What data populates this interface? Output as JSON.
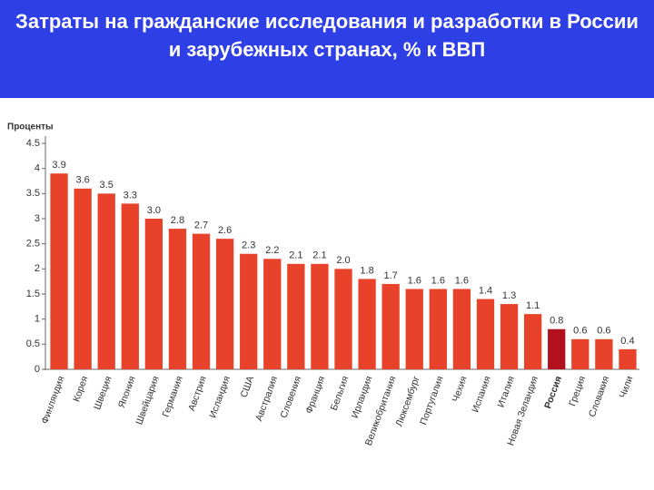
{
  "chart_data": {
    "type": "bar",
    "title": "Затраты на гражданские исследования и разработки в России и зарубежных странах, % к ВВП",
    "y_label": "Проценты",
    "categories": [
      "Финляндия",
      "Корея",
      "Швеция",
      "Япония",
      "Швейцария",
      "Германия",
      "Австрия",
      "Исландия",
      "США",
      "Австралия",
      "Словения",
      "Франция",
      "Бельгия",
      "Ирландия",
      "Великобритания",
      "Люксембург",
      "Португалия",
      "Чехия",
      "Испания",
      "Италия",
      "Новая Зеландия",
      "Россия",
      "Греция",
      "Словакия",
      "Чили"
    ],
    "values": [
      3.9,
      3.6,
      3.5,
      3.3,
      3.0,
      2.8,
      2.7,
      2.6,
      2.3,
      2.2,
      2.1,
      2.1,
      2.0,
      1.8,
      1.7,
      1.6,
      1.6,
      1.6,
      1.4,
      1.3,
      1.1,
      0.8,
      0.6,
      0.6,
      0.4
    ],
    "value_labels": [
      "3.9",
      "3.6",
      "3.5",
      "3.3",
      "3.0",
      "2.8",
      "2.7",
      "2.6",
      "2.3",
      "2.2",
      "2.1",
      "2.1",
      "2.0",
      "1.8",
      "1.7",
      "1.6",
      "1.6",
      "1.6",
      "1.4",
      "1.3",
      "1.1",
      "0.8",
      "0.6",
      "0.6",
      "0.4"
    ],
    "color": "#e8432a",
    "colors": [
      "#e8432a",
      "#e8432a",
      "#e8432a",
      "#e8432a",
      "#e8432a",
      "#e8432a",
      "#e8432a",
      "#e8432a",
      "#e8432a",
      "#e8432a",
      "#e8432a",
      "#e8432a",
      "#e8432a",
      "#e8432a",
      "#e8432a",
      "#e8432a",
      "#e8432a",
      "#e8432a",
      "#e8432a",
      "#e8432a",
      "#e8432a",
      "#b3101e",
      "#e8432a",
      "#e8432a",
      "#e8432a"
    ],
    "ylim": [
      0,
      4.5
    ],
    "yticks": [
      0,
      0.5,
      1,
      1.5,
      2,
      2.5,
      3,
      3.5,
      4,
      4.5
    ],
    "grid": false
  }
}
